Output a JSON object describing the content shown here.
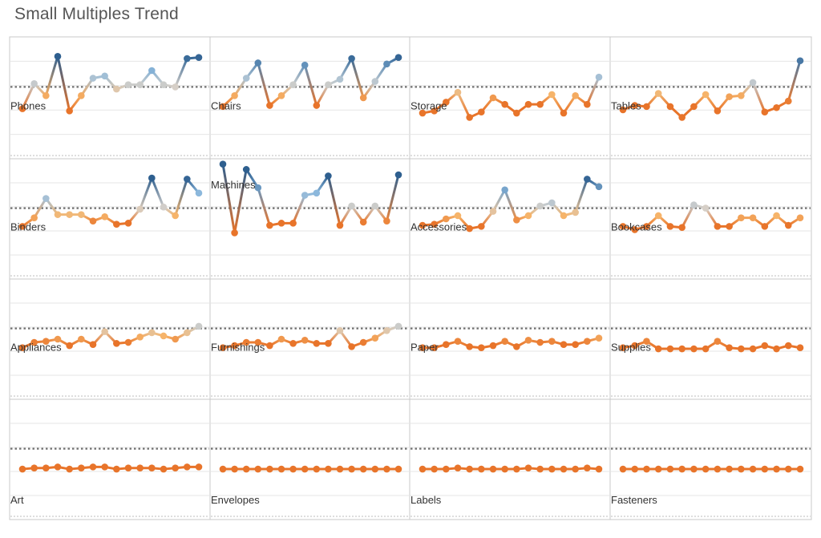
{
  "title": "Small Multiples Trend",
  "colors": {
    "low": "#e8742a",
    "lowMid": "#f6b46a",
    "neutral": "#d6cfc7",
    "highMid": "#8cb8dc",
    "high": "#2e5f8f",
    "gridline": "#e6e6e6",
    "border": "#c8c8c8",
    "refline": "#707070"
  },
  "chart_data": {
    "type": "line",
    "layout": "small-multiples 4x4",
    "ylim_per_row": [
      [
        0,
        100
      ],
      [
        0,
        100
      ],
      [
        0,
        100
      ],
      [
        0,
        100
      ]
    ],
    "panels": [
      {
        "name": "Phones",
        "values": [
          40,
          63,
          52,
          88,
          38,
          52,
          68,
          70,
          58,
          62,
          62,
          75,
          62,
          60,
          86,
          87
        ]
      },
      {
        "name": "Chairs",
        "values": [
          42,
          52,
          68,
          82,
          43,
          52,
          62,
          80,
          43,
          62,
          67,
          86,
          50,
          65,
          81,
          87
        ]
      },
      {
        "name": "Storage",
        "values": [
          36,
          38,
          46,
          55,
          32,
          37,
          50,
          44,
          36,
          44,
          44,
          53,
          36,
          52,
          44,
          69
        ]
      },
      {
        "name": "Tables",
        "values": [
          39,
          43,
          42,
          54,
          42,
          32,
          42,
          53,
          38,
          51,
          52,
          64,
          37,
          41,
          47,
          84
        ]
      },
      {
        "name": "Binders",
        "values": [
          43,
          51,
          69,
          54,
          54,
          54,
          48,
          52,
          45,
          46,
          59,
          88,
          61,
          53,
          87,
          74
        ]
      },
      {
        "name": "Machines",
        "values": [
          101,
          37,
          96,
          79,
          44,
          46,
          46,
          72,
          74,
          90,
          44,
          62,
          47,
          62,
          48,
          91
        ]
      },
      {
        "name": "Accessories",
        "values": [
          44,
          45,
          50,
          53,
          41,
          43,
          57,
          77,
          49,
          53,
          62,
          65,
          53,
          56,
          87,
          80
        ]
      },
      {
        "name": "Bookcases",
        "values": [
          43,
          40,
          43,
          53,
          43,
          42,
          63,
          60,
          43,
          43,
          51,
          51,
          43,
          53,
          44,
          51
        ]
      },
      {
        "name": "Appliances",
        "values": [
          42,
          47,
          48,
          50,
          44,
          50,
          45,
          57,
          46,
          47,
          52,
          56,
          53,
          50,
          56,
          62
        ]
      },
      {
        "name": "Furnishings",
        "values": [
          42,
          44,
          47,
          47,
          44,
          50,
          46,
          49,
          46,
          46,
          58,
          43,
          47,
          51,
          58,
          62
        ]
      },
      {
        "name": "Paper",
        "values": [
          42,
          42,
          45,
          48,
          43,
          42,
          44,
          48,
          43,
          49,
          47,
          48,
          45,
          45,
          48,
          51
        ]
      },
      {
        "name": "Supplies",
        "values": [
          42,
          44,
          48,
          41,
          41,
          41,
          41,
          41,
          48,
          42,
          41,
          41,
          44,
          41,
          44,
          42
        ]
      },
      {
        "name": "Art",
        "values": [
          41,
          42,
          42,
          43,
          41,
          42,
          43,
          43,
          41,
          42,
          42,
          42,
          41,
          42,
          43,
          43
        ]
      },
      {
        "name": "Envelopes",
        "values": [
          41,
          41,
          41,
          41,
          41,
          41,
          41,
          41,
          41,
          41,
          41,
          41,
          41,
          41,
          41,
          41
        ]
      },
      {
        "name": "Labels",
        "values": [
          41,
          41,
          41,
          42,
          41,
          41,
          41,
          41,
          41,
          42,
          41,
          41,
          41,
          41,
          42,
          41
        ]
      },
      {
        "name": "Fasteners",
        "values": [
          41,
          41,
          41,
          41,
          41,
          41,
          41,
          41,
          41,
          41,
          41,
          41,
          41,
          41,
          41,
          41
        ]
      }
    ],
    "reference_line": 60,
    "grid": true,
    "legend": "none"
  }
}
